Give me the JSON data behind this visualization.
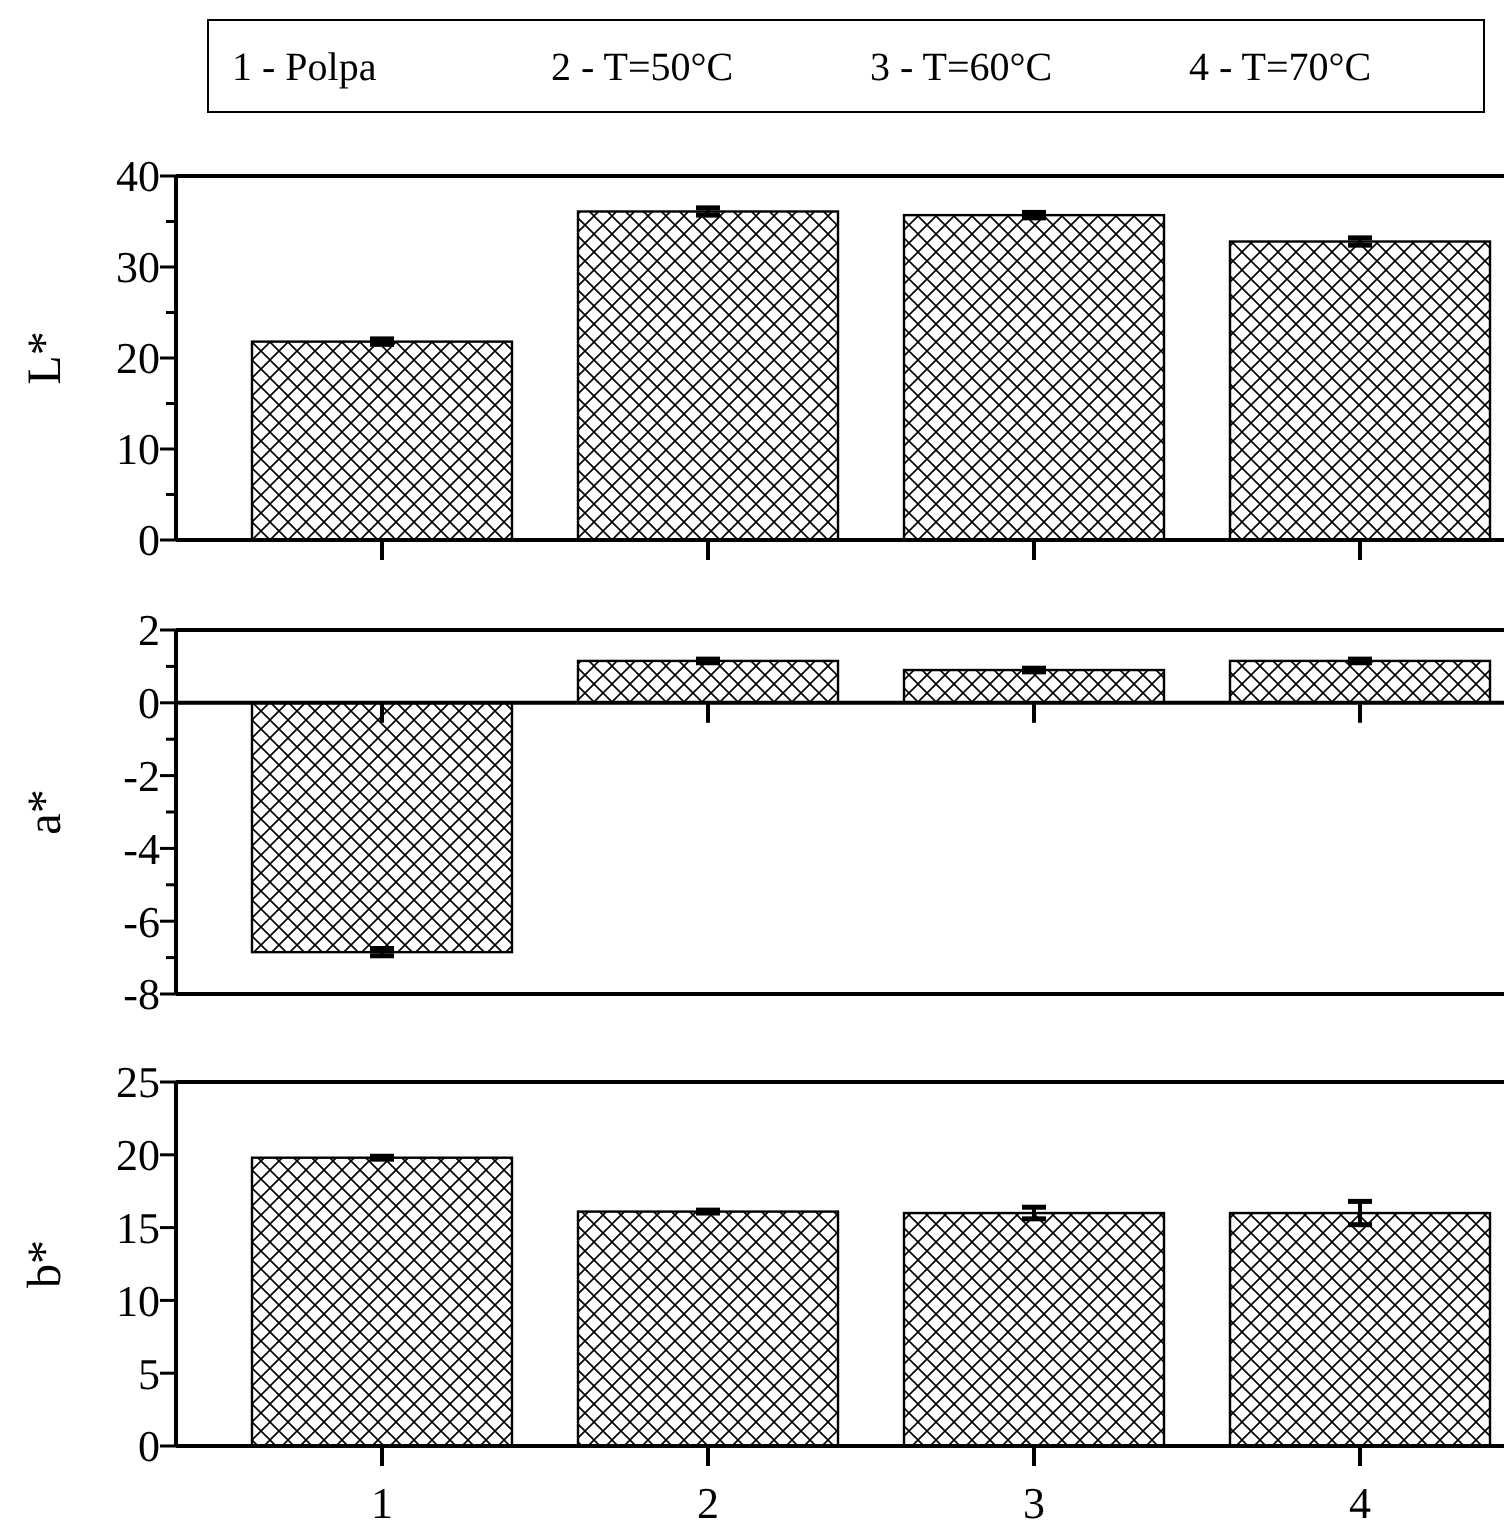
{
  "chart_data": [
    {
      "type": "bar",
      "annotations": [
        "1 - Polpa",
        "2 - T=50°C",
        "3 - T=60°C",
        "4 - T=70°C"
      ],
      "ylabel": "L*",
      "categories": [
        "1",
        "2",
        "3",
        "4"
      ],
      "values": [
        21.8,
        36.1,
        35.7,
        32.8
      ],
      "errors": [
        0.3,
        0.4,
        0.3,
        0.4
      ],
      "color": "#000000",
      "ylim": [
        0,
        40
      ],
      "yticks": [
        0,
        {
          "value": 5,
          "label": null
        },
        10,
        {
          "value": 15,
          "label": null
        },
        20,
        {
          "value": 25,
          "label": null
        },
        30,
        {
          "value": 35,
          "label": null
        },
        40
      ],
      "tick_labels": "y"
    },
    {
      "type": "bar",
      "ylabel": "a*",
      "categories": [
        "1",
        "2",
        "3",
        "4"
      ],
      "values": [
        -6.85,
        1.15,
        0.9,
        1.15
      ],
      "errors": [
        0.1,
        0.05,
        0.05,
        0.05
      ],
      "color": "#000000",
      "ylim": [
        -8,
        2
      ],
      "yticks": [
        -8,
        {
          "value": -7,
          "label": null
        },
        -6,
        {
          "value": -5,
          "label": null
        },
        -4,
        {
          "value": -3,
          "label": null
        },
        -2,
        {
          "value": -1,
          "label": null
        },
        0,
        {
          "value": 1,
          "label": null
        },
        2
      ],
      "tick_labels": "y"
    },
    {
      "type": "bar",
      "ylabel": "b*",
      "categories": [
        "1",
        "2",
        "3",
        "4"
      ],
      "values": [
        19.8,
        16.1,
        16.0,
        16.0
      ],
      "errors": [
        0.1,
        0.1,
        0.4,
        0.8
      ],
      "color": "#000000",
      "ylim": [
        0,
        25
      ],
      "yticks": [
        0,
        5,
        10,
        15,
        20,
        25
      ]
    }
  ]
}
